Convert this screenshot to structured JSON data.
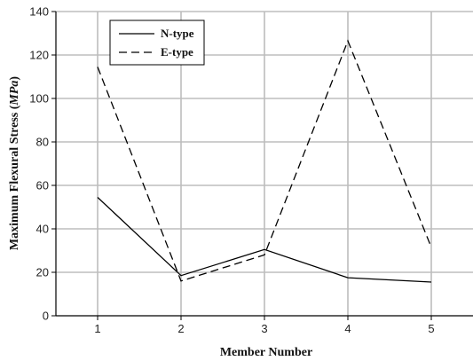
{
  "chart_data": {
    "type": "line",
    "xlabel": "Member Number",
    "ylabel_main": "Maximum Flexural Stress (",
    "ylabel_unit": "MPa",
    "ylabel_close": ")",
    "x": [
      1,
      2,
      3,
      4,
      5
    ],
    "xticks": [
      "1",
      "2",
      "3",
      "4",
      "5"
    ],
    "xlim": [
      0.5,
      5.5
    ],
    "yticks": [
      "0",
      "20",
      "40",
      "60",
      "80",
      "100",
      "120",
      "140"
    ],
    "ylim": [
      0,
      140
    ],
    "grid": true,
    "legend_position": "top-left",
    "series": [
      {
        "name": "N-type",
        "style": "solid",
        "color": "#000000",
        "values": [
          54.5,
          18.5,
          30.5,
          17.5,
          15.5
        ]
      },
      {
        "name": "E-type",
        "style": "dashed",
        "color": "#000000",
        "values": [
          114.5,
          16,
          28,
          126.5,
          31.5
        ]
      }
    ]
  }
}
